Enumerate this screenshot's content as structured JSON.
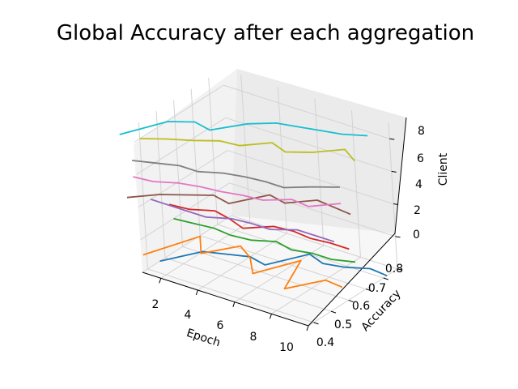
{
  "chart_data": {
    "type": "line",
    "projection": "3d",
    "title": "Global Accuracy after each aggregation",
    "xlabel": "Epoch",
    "ylabel": "Accuracy",
    "zlabel": "Client",
    "xticks": [
      "2",
      "4",
      "6",
      "8",
      "10"
    ],
    "yticks": [
      "0.4",
      "0.5",
      "0.6",
      "0.7",
      "0.8"
    ],
    "zticks": [
      "0",
      "2",
      "4",
      "6",
      "8"
    ],
    "xlim": [
      1,
      10
    ],
    "ylim": [
      0.37,
      0.88
    ],
    "zlim": [
      0,
      9
    ],
    "grid": true,
    "x": [
      1,
      2,
      3,
      4,
      5,
      6,
      7,
      8,
      9,
      10
    ],
    "series": [
      {
        "client": 0,
        "color": "#1f77b4",
        "values": [
          0.47,
          0.61,
          0.64,
          0.67,
          0.65,
          0.8,
          0.77,
          0.79,
          0.83,
          0.82
        ]
      },
      {
        "client": 1,
        "color": "#ff7f0e",
        "values": [
          0.38,
          0.6,
          0.5,
          0.62,
          0.57,
          0.48,
          0.65,
          0.45,
          0.58,
          0.57
        ]
      },
      {
        "client": 2,
        "color": "#2ca02c",
        "values": [
          0.56,
          0.57,
          0.58,
          0.57,
          0.58,
          0.62,
          0.6,
          0.62,
          0.62,
          0.65
        ]
      },
      {
        "client": 3,
        "color": "#d62728",
        "values": [
          0.54,
          0.55,
          0.59,
          0.57,
          0.54,
          0.61,
          0.62,
          0.61,
          0.62,
          0.62
        ]
      },
      {
        "client": 4,
        "color": "#9467bd",
        "values": [
          0.44,
          0.44,
          0.44,
          0.44,
          0.48,
          0.49,
          0.49,
          0.54,
          0.54,
          0.54
        ]
      },
      {
        "client": 5,
        "color": "#8c564b",
        "values": [
          0.31,
          0.39,
          0.44,
          0.49,
          0.47,
          0.6,
          0.58,
          0.66,
          0.65,
          0.64
        ]
      },
      {
        "client": 6,
        "color": "#e377c2",
        "values": [
          0.35,
          0.36,
          0.4,
          0.42,
          0.43,
          0.45,
          0.46,
          0.52,
          0.51,
          0.59
        ]
      },
      {
        "client": 7,
        "color": "#7f7f7f",
        "values": [
          0.35,
          0.38,
          0.41,
          0.41,
          0.45,
          0.47,
          0.48,
          0.48,
          0.54,
          0.59
        ]
      },
      {
        "client": 8,
        "color": "#bcbd22",
        "values": [
          0.4,
          0.45,
          0.49,
          0.54,
          0.55,
          0.63,
          0.6,
          0.65,
          0.73,
          0.68
        ]
      },
      {
        "client": 9,
        "color": "#17becf",
        "values": [
          0.29,
          0.46,
          0.51,
          0.49,
          0.6,
          0.66,
          0.68,
          0.7,
          0.72,
          0.76
        ]
      }
    ]
  }
}
